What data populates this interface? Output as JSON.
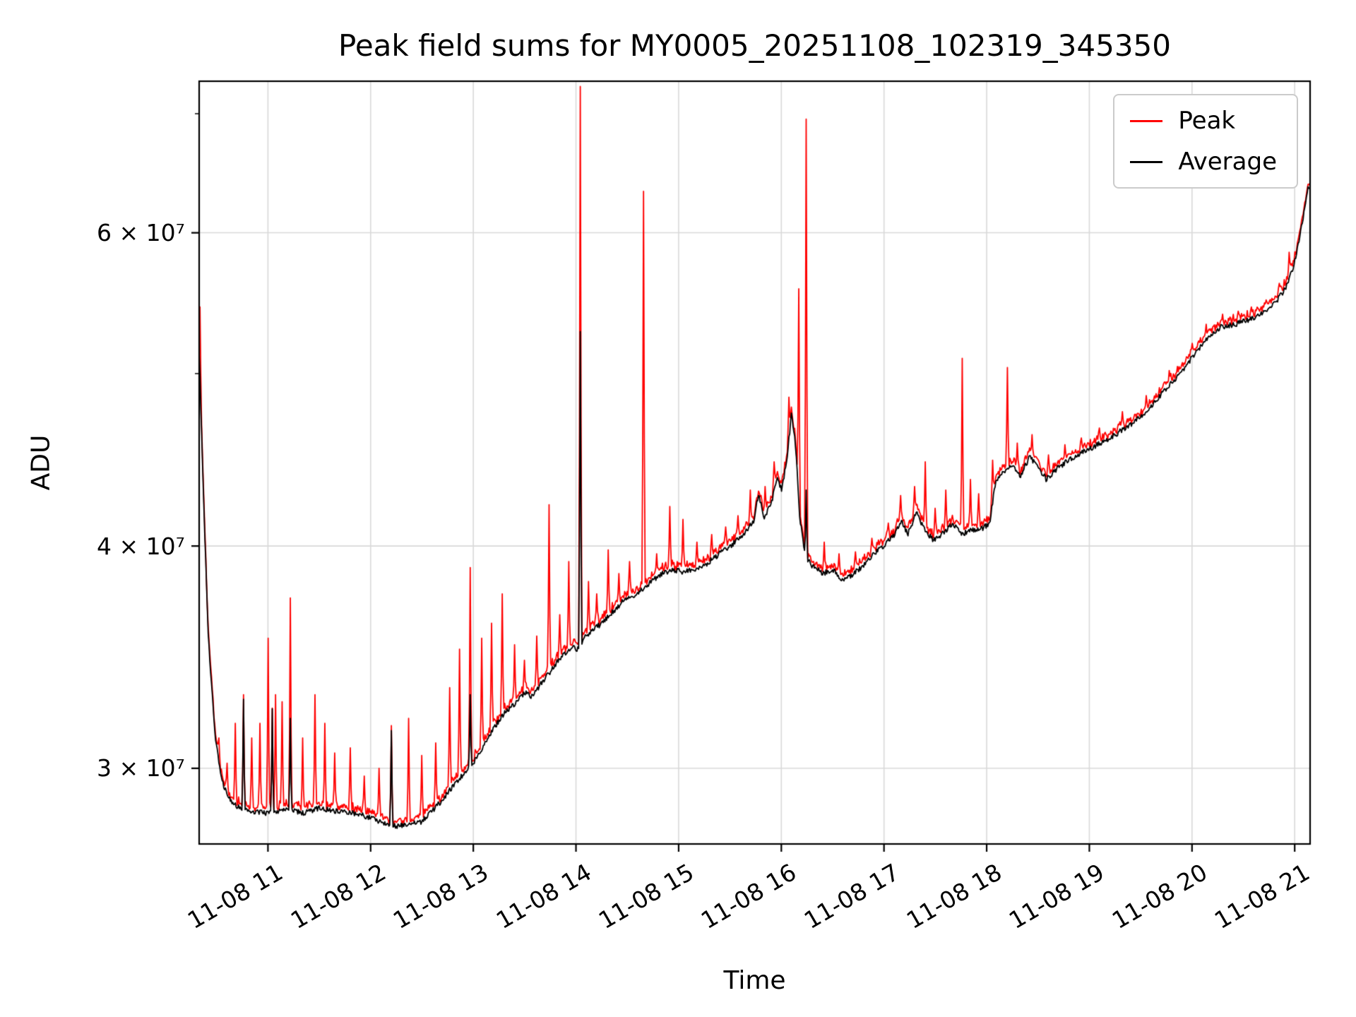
{
  "page": {
    "title": "Peak field sums for MY0005_20251108_102319_345350"
  },
  "chart_data": {
    "type": "line",
    "title": "Peak field sums for MY0005_20251108_102319_345350",
    "xlabel": "Time",
    "ylabel": "ADU",
    "yscale": "log",
    "grid": true,
    "legend_position": "upper right",
    "ylim": [
      27200000.0,
      73000000.0
    ],
    "xlim_hours": [
      10.33,
      21.15
    ],
    "x_ticks": [
      {
        "hour": 11,
        "label": "11-08 11"
      },
      {
        "hour": 12,
        "label": "11-08 12"
      },
      {
        "hour": 13,
        "label": "11-08 13"
      },
      {
        "hour": 14,
        "label": "11-08 14"
      },
      {
        "hour": 15,
        "label": "11-08 15"
      },
      {
        "hour": 16,
        "label": "11-08 16"
      },
      {
        "hour": 17,
        "label": "11-08 17"
      },
      {
        "hour": 18,
        "label": "11-08 18"
      },
      {
        "hour": 19,
        "label": "11-08 19"
      },
      {
        "hour": 20,
        "label": "11-08 20"
      },
      {
        "hour": 21,
        "label": "11-08 21"
      }
    ],
    "y_ticks": [
      {
        "value": 30000000.0,
        "label": "3 × 10⁷"
      },
      {
        "value": 40000000.0,
        "label": "4 × 10⁷"
      },
      {
        "value": 60000000.0,
        "label": "6 × 10⁷"
      }
    ],
    "y_minor_ticks": [
      50000000.0,
      70000000.0
    ],
    "series": [
      {
        "name": "Peak",
        "color": "#ff0000",
        "role": "peak"
      },
      {
        "name": "Average",
        "color": "#000000",
        "role": "average"
      }
    ],
    "average_keypoints": [
      [
        10.33,
        51500000.0
      ],
      [
        10.37,
        43000000.0
      ],
      [
        10.42,
        35500000.0
      ],
      [
        10.48,
        31500000.0
      ],
      [
        10.55,
        29500000.0
      ],
      [
        10.65,
        28650000.0
      ],
      [
        10.8,
        28400000.0
      ],
      [
        11.0,
        28300000.0
      ],
      [
        11.2,
        28450000.0
      ],
      [
        11.35,
        28300000.0
      ],
      [
        11.5,
        28500000.0
      ],
      [
        11.65,
        28400000.0
      ],
      [
        11.8,
        28350000.0
      ],
      [
        11.95,
        28200000.0
      ],
      [
        12.1,
        28000000.0
      ],
      [
        12.25,
        27850000.0
      ],
      [
        12.4,
        27900000.0
      ],
      [
        12.5,
        28000000.0
      ],
      [
        12.6,
        28400000.0
      ],
      [
        12.7,
        28800000.0
      ],
      [
        12.8,
        29300000.0
      ],
      [
        12.9,
        29750000.0
      ],
      [
        13.0,
        30200000.0
      ],
      [
        13.1,
        30900000.0
      ],
      [
        13.2,
        31600000.0
      ],
      [
        13.3,
        32200000.0
      ],
      [
        13.4,
        32600000.0
      ],
      [
        13.5,
        33100000.0
      ],
      [
        13.57,
        32900000.0
      ],
      [
        13.65,
        33400000.0
      ],
      [
        13.75,
        34000000.0
      ],
      [
        13.85,
        34600000.0
      ],
      [
        13.95,
        35100000.0
      ],
      [
        14.02,
        35000000.0
      ],
      [
        14.08,
        35500000.0
      ],
      [
        14.15,
        35800000.0
      ],
      [
        14.25,
        36200000.0
      ],
      [
        14.35,
        36700000.0
      ],
      [
        14.45,
        37200000.0
      ],
      [
        14.55,
        37500000.0
      ],
      [
        14.65,
        37800000.0
      ],
      [
        14.75,
        38300000.0
      ],
      [
        14.85,
        38600000.0
      ],
      [
        14.95,
        38750000.0
      ],
      [
        15.05,
        38700000.0
      ],
      [
        15.15,
        38800000.0
      ],
      [
        15.25,
        39000000.0
      ],
      [
        15.35,
        39400000.0
      ],
      [
        15.45,
        39800000.0
      ],
      [
        15.55,
        40200000.0
      ],
      [
        15.65,
        40700000.0
      ],
      [
        15.73,
        41300000.0
      ],
      [
        15.78,
        42800000.0
      ],
      [
        15.83,
        41500000.0
      ],
      [
        15.9,
        42200000.0
      ],
      [
        15.96,
        43800000.0
      ],
      [
        16.0,
        43000000.0
      ],
      [
        16.05,
        44500000.0
      ],
      [
        16.1,
        47500000.0
      ],
      [
        16.14,
        45500000.0
      ],
      [
        16.18,
        41500000.0
      ],
      [
        16.23,
        39500000.0
      ],
      [
        16.3,
        39000000.0
      ],
      [
        16.4,
        38600000.0
      ],
      [
        16.5,
        38800000.0
      ],
      [
        16.58,
        38300000.0
      ],
      [
        16.68,
        38500000.0
      ],
      [
        16.8,
        39000000.0
      ],
      [
        16.9,
        39600000.0
      ],
      [
        17.0,
        40000000.0
      ],
      [
        17.1,
        40600000.0
      ],
      [
        17.17,
        41400000.0
      ],
      [
        17.23,
        40600000.0
      ],
      [
        17.32,
        41800000.0
      ],
      [
        17.38,
        41000000.0
      ],
      [
        17.48,
        40300000.0
      ],
      [
        17.58,
        40700000.0
      ],
      [
        17.67,
        41200000.0
      ],
      [
        17.75,
        40600000.0
      ],
      [
        17.85,
        40800000.0
      ],
      [
        17.95,
        40900000.0
      ],
      [
        18.03,
        41200000.0
      ],
      [
        18.08,
        43300000.0
      ],
      [
        18.15,
        44000000.0
      ],
      [
        18.25,
        44400000.0
      ],
      [
        18.33,
        43800000.0
      ],
      [
        18.42,
        44900000.0
      ],
      [
        18.5,
        44300000.0
      ],
      [
        18.58,
        43600000.0
      ],
      [
        18.68,
        44200000.0
      ],
      [
        18.8,
        44700000.0
      ],
      [
        18.92,
        45100000.0
      ],
      [
        19.05,
        45500000.0
      ],
      [
        19.2,
        46000000.0
      ],
      [
        19.38,
        46700000.0
      ],
      [
        19.55,
        47600000.0
      ],
      [
        19.72,
        48800000.0
      ],
      [
        19.88,
        50000000.0
      ],
      [
        20.02,
        51200000.0
      ],
      [
        20.15,
        52400000.0
      ],
      [
        20.28,
        53100000.0
      ],
      [
        20.42,
        53300000.0
      ],
      [
        20.55,
        53600000.0
      ],
      [
        20.68,
        54000000.0
      ],
      [
        20.8,
        54700000.0
      ],
      [
        20.9,
        55700000.0
      ],
      [
        20.98,
        57200000.0
      ],
      [
        21.04,
        59200000.0
      ],
      [
        21.09,
        61500000.0
      ],
      [
        21.13,
        63500000.0
      ]
    ],
    "peak_spikes": [
      [
        10.34,
        54500000.0
      ],
      [
        10.52,
        31200000.0
      ],
      [
        10.6,
        30200000.0
      ],
      [
        10.68,
        31800000.0
      ],
      [
        10.76,
        33000000.0
      ],
      [
        10.84,
        31200000.0
      ],
      [
        10.92,
        31800000.0
      ],
      [
        11.0,
        35500000.0
      ],
      [
        11.07,
        33000000.0
      ],
      [
        11.14,
        32700000.0
      ],
      [
        11.22,
        37400000.0
      ],
      [
        11.34,
        31200000.0
      ],
      [
        11.46,
        33000000.0
      ],
      [
        11.55,
        31800000.0
      ],
      [
        11.65,
        30600000.0
      ],
      [
        11.8,
        30800000.0
      ],
      [
        11.94,
        29700000.0
      ],
      [
        12.08,
        30000000.0
      ],
      [
        12.2,
        31700000.0
      ],
      [
        12.37,
        32000000.0
      ],
      [
        12.5,
        30500000.0
      ],
      [
        12.63,
        31000000.0
      ],
      [
        12.77,
        33300000.0
      ],
      [
        12.87,
        35000000.0
      ],
      [
        12.97,
        38900000.0
      ],
      [
        13.08,
        35500000.0
      ],
      [
        13.18,
        36200000.0
      ],
      [
        13.28,
        37600000.0
      ],
      [
        13.4,
        35200000.0
      ],
      [
        13.5,
        34500000.0
      ],
      [
        13.62,
        35600000.0
      ],
      [
        13.74,
        42200000.0
      ],
      [
        13.84,
        36600000.0
      ],
      [
        13.93,
        39200000.0
      ],
      [
        14.04,
        72500000.0
      ],
      [
        14.12,
        38200000.0
      ],
      [
        14.2,
        37600000.0
      ],
      [
        14.31,
        39800000.0
      ],
      [
        14.42,
        38600000.0
      ],
      [
        14.52,
        39200000.0
      ],
      [
        14.66,
        63300000.0
      ],
      [
        14.79,
        39600000.0
      ],
      [
        14.91,
        42100000.0
      ],
      [
        15.04,
        41400000.0
      ],
      [
        15.18,
        40200000.0
      ],
      [
        15.32,
        40600000.0
      ],
      [
        15.46,
        41000000.0
      ],
      [
        15.58,
        41600000.0
      ],
      [
        15.7,
        43000000.0
      ],
      [
        15.84,
        43200000.0
      ],
      [
        15.93,
        44600000.0
      ],
      [
        16.07,
        48500000.0
      ],
      [
        16.17,
        55800000.0
      ],
      [
        16.24,
        69500000.0
      ],
      [
        16.42,
        40200000.0
      ],
      [
        16.56,
        39600000.0
      ],
      [
        16.72,
        39700000.0
      ],
      [
        16.88,
        40400000.0
      ],
      [
        17.04,
        41200000.0
      ],
      [
        17.16,
        42700000.0
      ],
      [
        17.3,
        43200000.0
      ],
      [
        17.4,
        44600000.0
      ],
      [
        17.5,
        42000000.0
      ],
      [
        17.6,
        43000000.0
      ],
      [
        17.76,
        51000000.0
      ],
      [
        17.84,
        43600000.0
      ],
      [
        17.92,
        42800000.0
      ],
      [
        18.06,
        44700000.0
      ],
      [
        18.2,
        50400000.0
      ],
      [
        18.3,
        45700000.0
      ],
      [
        18.44,
        46200000.0
      ],
      [
        18.6,
        45000000.0
      ],
      [
        18.76,
        45600000.0
      ],
      [
        18.92,
        46000000.0
      ],
      [
        19.1,
        46600000.0
      ],
      [
        19.32,
        47600000.0
      ],
      [
        19.55,
        48600000.0
      ],
      [
        19.78,
        50200000.0
      ],
      [
        20.0,
        52000000.0
      ],
      [
        20.14,
        53300000.0
      ],
      [
        20.3,
        54000000.0
      ],
      [
        20.45,
        54200000.0
      ],
      [
        20.58,
        54500000.0
      ],
      [
        20.72,
        55000000.0
      ],
      [
        20.85,
        56200000.0
      ],
      [
        20.95,
        58500000.0
      ]
    ],
    "average_spikes": [
      [
        10.76,
        32800000.0
      ],
      [
        11.04,
        32400000.0
      ],
      [
        11.22,
        32000000.0
      ],
      [
        12.2,
        31500000.0
      ],
      [
        12.97,
        33000000.0
      ],
      [
        14.04,
        52800000.0
      ],
      [
        16.24,
        43000000.0
      ]
    ]
  }
}
